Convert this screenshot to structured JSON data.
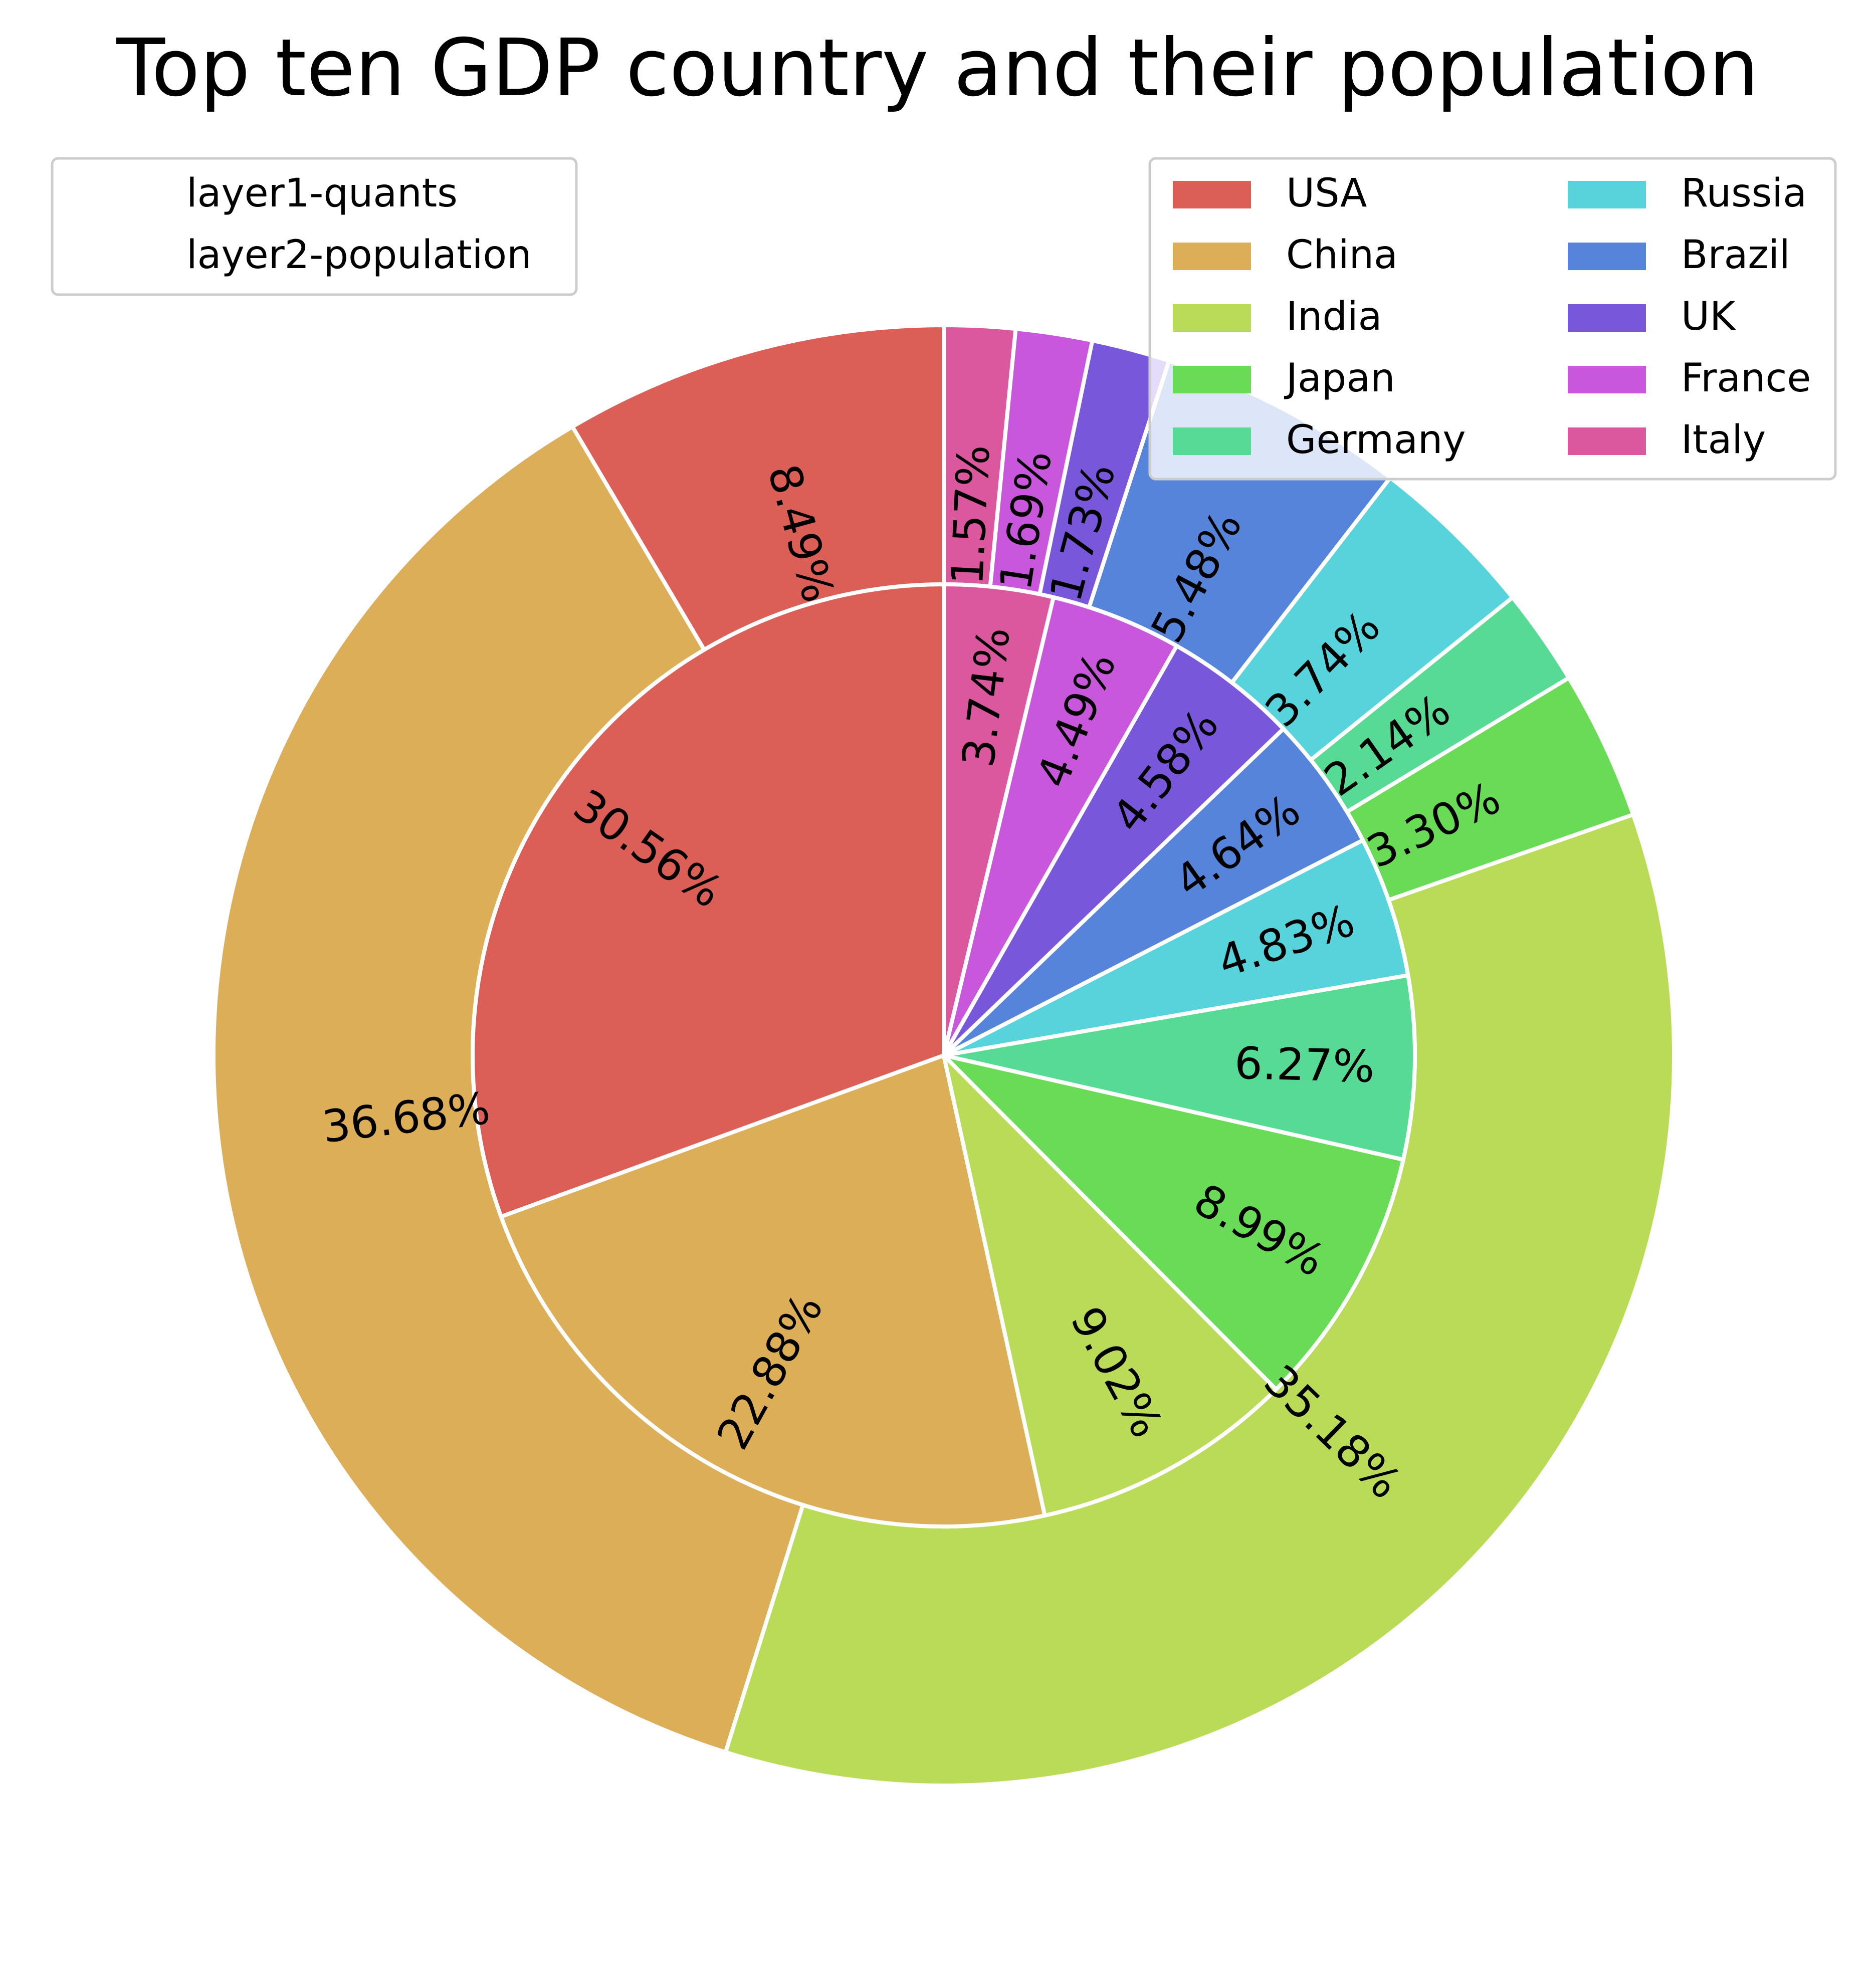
{
  "chart_data": {
    "type": "pie",
    "variant": "nested-donut",
    "title": "Top ten GDP country and their population",
    "categories": [
      "USA",
      "China",
      "India",
      "Japan",
      "Germany",
      "Russia",
      "Brazil",
      "UK",
      "France",
      "Italy"
    ],
    "colors": [
      "#db5f57",
      "#dbae57",
      "#b9db57",
      "#69db57",
      "#57db94",
      "#57d3db",
      "#5784db",
      "#7957db",
      "#c957db",
      "#db579e"
    ],
    "rings": [
      {
        "name": "layer1-quants",
        "position": "inner",
        "values": [
          30.56,
          22.88,
          9.02,
          8.99,
          6.27,
          4.83,
          4.64,
          4.58,
          4.49,
          3.74
        ]
      },
      {
        "name": "layer2-population",
        "position": "outer",
        "values": [
          8.49,
          36.68,
          35.18,
          3.3,
          2.14,
          3.74,
          5.48,
          1.73,
          1.69,
          1.57
        ]
      }
    ],
    "start_angle_deg": 90,
    "direction": "counterclockwise",
    "legends": [
      {
        "placement": "upper-left",
        "entries": [
          "layer1-quants",
          "layer2-population"
        ]
      },
      {
        "placement": "upper-right",
        "columns": 2,
        "entries": [
          "USA",
          "China",
          "India",
          "Japan",
          "Germany",
          "Russia",
          "Brazil",
          "UK",
          "France",
          "Italy"
        ]
      }
    ]
  }
}
